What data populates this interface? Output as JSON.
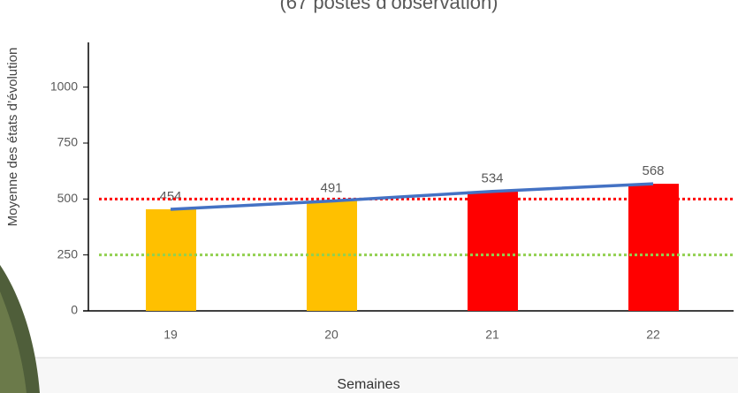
{
  "chart_data": {
    "type": "bar",
    "subtitle": "(67 postes d’observation)",
    "x_label": "Semaines",
    "y_label": "Moyenne des états d’évolution",
    "categories": [
      "19",
      "20",
      "21",
      "22"
    ],
    "values": [
      454,
      491,
      534,
      568
    ],
    "colors": [
      "#ffc000",
      "#ffc000",
      "#ff0000",
      "#ff0000"
    ],
    "trend_color": "#4472c4",
    "reference_lines": [
      {
        "value": 500,
        "color": "#ff0000"
      },
      {
        "value": 250,
        "color": "#92d050"
      }
    ],
    "ylim": [
      0,
      1200
    ],
    "yticks": [
      0,
      250,
      500,
      750,
      1000
    ]
  }
}
